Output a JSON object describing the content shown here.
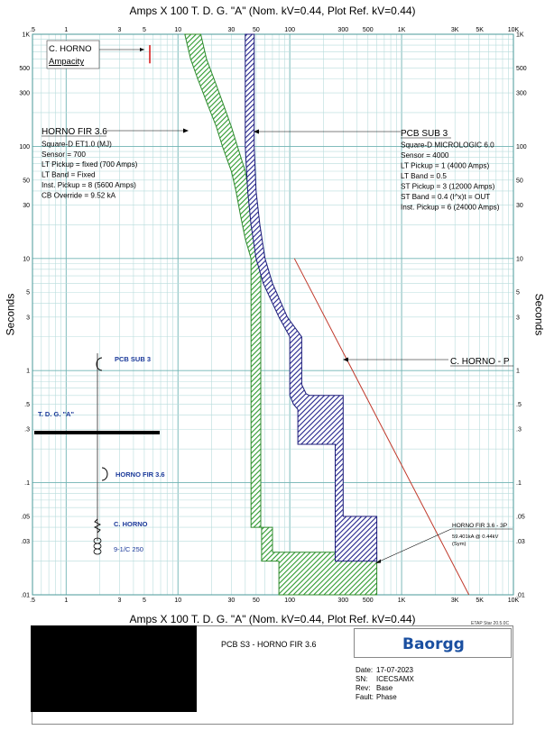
{
  "header": {
    "title_top": "Amps  X  100   T. D. G. \"A\" (Nom. kV=0.44, Plot Ref. kV=0.44)",
    "title_bottom": "Amps  X  100   T. D. G. \"A\" (Nom. kV=0.44, Plot Ref. kV=0.44)",
    "ylabel": "Seconds"
  },
  "chart_data": {
    "type": "line",
    "title": "Amps  X  100   T. D. G. \"A\" (Nom. kV=0.44, Plot Ref. kV=0.44)",
    "xlabel": "Amps  X  100   T. D. G. \"A\" (Nom. kV=0.44, Plot Ref. kV=0.44)",
    "ylabel": "Seconds",
    "x_scale": "log",
    "y_scale": "log",
    "xlim": [
      0.5,
      10000
    ],
    "ylim": [
      0.01,
      1000
    ],
    "grid": true,
    "x_ticks": [
      {
        "v": 0.5,
        "l": ".5"
      },
      {
        "v": 1,
        "l": "1"
      },
      {
        "v": 3,
        "l": "3"
      },
      {
        "v": 5,
        "l": "5"
      },
      {
        "v": 10,
        "l": "10"
      },
      {
        "v": 30,
        "l": "30"
      },
      {
        "v": 50,
        "l": "50"
      },
      {
        "v": 100,
        "l": "100"
      },
      {
        "v": 300,
        "l": "300"
      },
      {
        "v": 500,
        "l": "500"
      },
      {
        "v": 1000,
        "l": "1K"
      },
      {
        "v": 3000,
        "l": "3K"
      },
      {
        "v": 5000,
        "l": "5K"
      },
      {
        "v": 10000,
        "l": "10K"
      }
    ],
    "y_ticks": [
      {
        "v": 1000,
        "l": "1K"
      },
      {
        "v": 500,
        "l": "500"
      },
      {
        "v": 300,
        "l": "300"
      },
      {
        "v": 100,
        "l": "100"
      },
      {
        "v": 50,
        "l": "50"
      },
      {
        "v": 30,
        "l": "30"
      },
      {
        "v": 10,
        "l": "10"
      },
      {
        "v": 5,
        "l": "5"
      },
      {
        "v": 3,
        "l": "3"
      },
      {
        "v": 1,
        "l": "1"
      },
      {
        "v": 0.5,
        "l": ".5"
      },
      {
        "v": 0.3,
        "l": ".3"
      },
      {
        "v": 0.1,
        "l": ".1"
      },
      {
        "v": 0.05,
        "l": ".05"
      },
      {
        "v": 0.03,
        "l": ".03"
      },
      {
        "v": 0.01,
        "l": ".01"
      }
    ],
    "series": [
      {
        "name": "HORNO FIR 3.6",
        "color": "#2e8b2e",
        "fill": "#3aa83a",
        "band_min": [
          [
            11.5,
            1000
          ],
          [
            13,
            600
          ],
          [
            15,
            400
          ],
          [
            18,
            250
          ],
          [
            22,
            150
          ],
          [
            25,
            100
          ],
          [
            30,
            60
          ],
          [
            33,
            40
          ],
          [
            36,
            25
          ],
          [
            40,
            15
          ],
          [
            45,
            10
          ],
          [
            45,
            0.04
          ],
          [
            56,
            0.04
          ],
          [
            56,
            0.02
          ],
          [
            80,
            0.02
          ],
          [
            80,
            0.01
          ]
        ],
        "band_max": [
          [
            16,
            1000
          ],
          [
            18,
            600
          ],
          [
            21,
            400
          ],
          [
            25,
            250
          ],
          [
            30,
            150
          ],
          [
            34,
            100
          ],
          [
            40,
            60
          ],
          [
            43,
            40
          ],
          [
            47,
            25
          ],
          [
            52,
            15
          ],
          [
            55,
            10
          ],
          [
            55,
            0.04
          ],
          [
            70,
            0.04
          ],
          [
            70,
            0.024
          ],
          [
            600,
            0.024
          ],
          [
            600,
            0.01
          ]
        ]
      },
      {
        "name": "PCB SUB 3",
        "color": "#1c1c7a",
        "fill": "#2a2aa0",
        "band_min": [
          [
            40,
            1000
          ],
          [
            40,
            100
          ],
          [
            42,
            40
          ],
          [
            45,
            20
          ],
          [
            50,
            10
          ],
          [
            58,
            6
          ],
          [
            80,
            3
          ],
          [
            100,
            2
          ],
          [
            100,
            0.6
          ],
          [
            108,
            0.5
          ],
          [
            118,
            0.45
          ],
          [
            118,
            0.22
          ],
          [
            255,
            0.22
          ],
          [
            255,
            0.02
          ],
          [
            600,
            0.02
          ]
        ],
        "band_max": [
          [
            48,
            1000
          ],
          [
            48,
            100
          ],
          [
            50,
            40
          ],
          [
            54,
            20
          ],
          [
            60,
            10
          ],
          [
            70,
            6
          ],
          [
            95,
            3
          ],
          [
            128,
            2
          ],
          [
            128,
            0.75
          ],
          [
            140,
            0.62
          ],
          [
            150,
            0.6
          ],
          [
            300,
            0.6
          ],
          [
            300,
            0.05
          ],
          [
            600,
            0.05
          ],
          [
            600,
            0.02
          ]
        ]
      },
      {
        "name": "C. HORNO - P",
        "color": "#c0392b",
        "points": [
          [
            110,
            10
          ],
          [
            4000,
            0.01
          ]
        ]
      },
      {
        "name": "C. HORNO Ampacity",
        "color": "#d62020",
        "points": [
          [
            5.6,
            800
          ],
          [
            5.6,
            550
          ]
        ]
      }
    ],
    "annotations": [
      {
        "id": "c-horno-ampacity",
        "lines": [
          "C. HORNO",
          "Ampacity"
        ],
        "boxed": true
      },
      {
        "id": "horno-fir",
        "lines": [
          "HORNO FIR 3.6",
          "Square-D  ET1.0 (MJ)",
          "Sensor = 700",
          "LT Pickup = fixed (700 Amps)",
          "LT Band = Fixed",
          "Inst. Pickup = 8 (5600 Amps)",
          "CB Override = 9.52 kA"
        ]
      },
      {
        "id": "pcb-sub",
        "lines": [
          "PCB SUB 3",
          "Square-D  MICROLOGIC 6.0",
          "Sensor = 4000",
          "LT Pickup = 1 (4000 Amps)",
          "LT Band = 0.5",
          "ST Pickup = 3 (12000 Amps)",
          "ST Band = 0.4  (I^x)t = OUT",
          "Inst. Pickup = 6 (24000 Amps)"
        ]
      },
      {
        "id": "c-horno-p",
        "lines": [
          "C. HORNO - P"
        ]
      },
      {
        "id": "fault",
        "lines": [
          "HORNO FIR 3.6 - 3P",
          "59.401kA @ 0.44kV",
          "(Sym)"
        ]
      }
    ],
    "one_line": {
      "labels": [
        "PCB SUB 3",
        "T. D. G. \"A\"",
        "HORNO FIR 3.6",
        "C. HORNO",
        "9-1/C 250"
      ]
    }
  },
  "footer": {
    "project_title": "PCB S3 - HORNO FIR 3.6",
    "logo": "Baorgg",
    "etap_version": "ETAP Star 20.5.0C",
    "fields": [
      {
        "k": "Date:",
        "v": "17-07-2023"
      },
      {
        "k": "SN:",
        "v": "ICECSAMX"
      },
      {
        "k": "Rev:",
        "v": "Base"
      },
      {
        "k": "Fault:",
        "v": "Phase"
      }
    ]
  }
}
